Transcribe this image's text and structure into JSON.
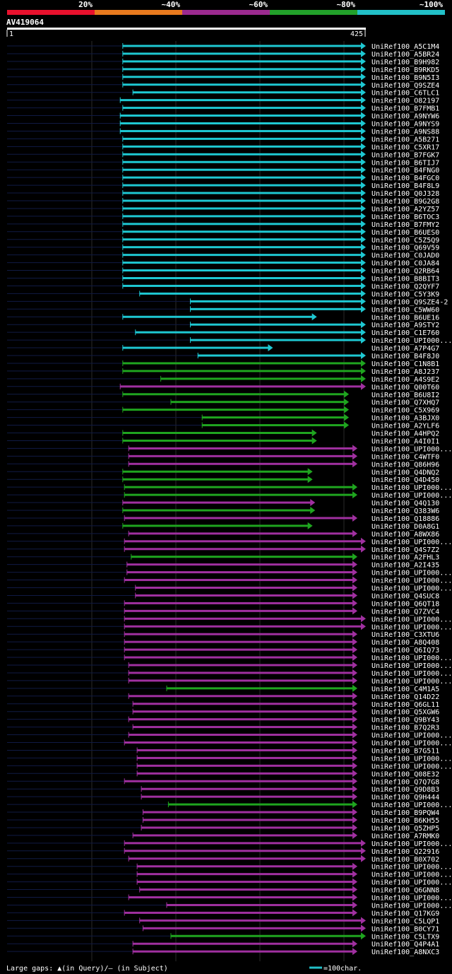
{
  "header": {
    "scale_labels": [
      "20%",
      "~40%",
      "~60%",
      "~80%",
      "~100%"
    ],
    "scale_colors": [
      "#e8112d",
      "#e87a1e",
      "#9b2a8f",
      "#22a02a",
      "#22c0c8"
    ],
    "query_id": "AV419064",
    "query_start": "1",
    "query_end": "425"
  },
  "footer": {
    "gaps_text": "Large gaps: ▲(in Query)/– (in Subject)",
    "scale_text": "=100char."
  },
  "chart_data": {
    "type": "alignment",
    "title": "AV419064",
    "x_range": [
      1,
      425
    ],
    "color_by_identity": {
      "cyan": "~100%",
      "green": "~80%",
      "purple": "~60%"
    },
    "hits": [
      {
        "id": "UniRef100_A5C1M4",
        "color": "cyan",
        "start": 138,
        "end": 425
      },
      {
        "id": "UniRef100_A5BR24",
        "color": "cyan",
        "start": 138,
        "end": 425
      },
      {
        "id": "UniRef100_B9H982",
        "color": "cyan",
        "start": 138,
        "end": 425
      },
      {
        "id": "UniRef100_B9RKD5",
        "color": "cyan",
        "start": 138,
        "end": 425
      },
      {
        "id": "UniRef100_B9N5I3",
        "color": "cyan",
        "start": 138,
        "end": 425
      },
      {
        "id": "UniRef100_Q9SZE4",
        "color": "cyan",
        "start": 138,
        "end": 425
      },
      {
        "id": "UniRef100_C6TLC1",
        "color": "cyan",
        "start": 150,
        "end": 425
      },
      {
        "id": "UniRef100_O82197",
        "color": "cyan",
        "start": 135,
        "end": 425
      },
      {
        "id": "UniRef100_B7FMB1",
        "color": "cyan",
        "start": 138,
        "end": 425
      },
      {
        "id": "UniRef100_A9NYW6",
        "color": "cyan",
        "start": 135,
        "end": 425
      },
      {
        "id": "UniRef100_A9NYS9",
        "color": "cyan",
        "start": 135,
        "end": 425
      },
      {
        "id": "UniRef100_A9NS88",
        "color": "cyan",
        "start": 135,
        "end": 425
      },
      {
        "id": "UniRef100_A5B271",
        "color": "cyan",
        "start": 138,
        "end": 425
      },
      {
        "id": "UniRef100_C5XR17",
        "color": "cyan",
        "start": 138,
        "end": 425
      },
      {
        "id": "UniRef100_B7FGK7",
        "color": "cyan",
        "start": 138,
        "end": 425
      },
      {
        "id": "UniRef100_B6TIJ7",
        "color": "cyan",
        "start": 138,
        "end": 425
      },
      {
        "id": "UniRef100_B4FNG0",
        "color": "cyan",
        "start": 138,
        "end": 425
      },
      {
        "id": "UniRef100_B4FGC0",
        "color": "cyan",
        "start": 138,
        "end": 425
      },
      {
        "id": "UniRef100_B4F8L9",
        "color": "cyan",
        "start": 138,
        "end": 425
      },
      {
        "id": "UniRef100_Q0J328",
        "color": "cyan",
        "start": 138,
        "end": 425
      },
      {
        "id": "UniRef100_B9G2G8",
        "color": "cyan",
        "start": 138,
        "end": 425
      },
      {
        "id": "UniRef100_A2YZ57",
        "color": "cyan",
        "start": 138,
        "end": 425
      },
      {
        "id": "UniRef100_B6TOC3",
        "color": "cyan",
        "start": 138,
        "end": 425
      },
      {
        "id": "UniRef100_B7FMY2",
        "color": "cyan",
        "start": 138,
        "end": 425
      },
      {
        "id": "UniRef100_B6UES0",
        "color": "cyan",
        "start": 138,
        "end": 425
      },
      {
        "id": "UniRef100_C5Z5Q9",
        "color": "cyan",
        "start": 138,
        "end": 425
      },
      {
        "id": "UniRef100_Q69V59",
        "color": "cyan",
        "start": 138,
        "end": 425
      },
      {
        "id": "UniRef100_C0JAD0",
        "color": "cyan",
        "start": 138,
        "end": 425
      },
      {
        "id": "UniRef100_C0JA84",
        "color": "cyan",
        "start": 138,
        "end": 425
      },
      {
        "id": "UniRef100_Q2RB64",
        "color": "cyan",
        "start": 138,
        "end": 425
      },
      {
        "id": "UniRef100_B8BIT3",
        "color": "cyan",
        "start": 138,
        "end": 425
      },
      {
        "id": "UniRef100_Q2QYF7",
        "color": "cyan",
        "start": 138,
        "end": 425
      },
      {
        "id": "UniRef100_C5Y3K9",
        "color": "cyan",
        "start": 158,
        "end": 425
      },
      {
        "id": "UniRef100_Q9SZE4-2",
        "color": "cyan",
        "start": 218,
        "end": 425
      },
      {
        "id": "UniRef100_C5WW60",
        "color": "cyan",
        "start": 218,
        "end": 425
      },
      {
        "id": "UniRef100_B6UE16",
        "color": "cyan",
        "start": 138,
        "end": 367
      },
      {
        "id": "UniRef100_A9STY2",
        "color": "cyan",
        "start": 218,
        "end": 425
      },
      {
        "id": "UniRef100_C1E760",
        "color": "cyan",
        "start": 153,
        "end": 425
      },
      {
        "id": "UniRef100_UPI000...",
        "color": "cyan",
        "start": 218,
        "end": 425
      },
      {
        "id": "UniRef100_A7P4G7",
        "color": "cyan",
        "start": 138,
        "end": 315
      },
      {
        "id": "UniRef100_B4F8J0",
        "color": "cyan",
        "start": 227,
        "end": 425
      },
      {
        "id": "UniRef100_C1N8B1",
        "color": "green",
        "start": 138,
        "end": 425
      },
      {
        "id": "UniRef100_A8J237",
        "color": "green",
        "start": 138,
        "end": 425
      },
      {
        "id": "UniRef100_A4S9E2",
        "color": "green",
        "start": 183,
        "end": 425
      },
      {
        "id": "UniRef100_Q00T60",
        "color": "purple",
        "start": 135,
        "end": 425
      },
      {
        "id": "UniRef100_B6U8I2",
        "color": "green",
        "start": 138,
        "end": 405
      },
      {
        "id": "UniRef100_Q7XHQ7",
        "color": "green",
        "start": 195,
        "end": 405
      },
      {
        "id": "UniRef100_C5X969",
        "color": "green",
        "start": 138,
        "end": 405
      },
      {
        "id": "UniRef100_A3BJX0",
        "color": "green",
        "start": 232,
        "end": 405
      },
      {
        "id": "UniRef100_A2YLF6",
        "color": "green",
        "start": 232,
        "end": 405
      },
      {
        "id": "UniRef100_A4HPQ2",
        "color": "green",
        "start": 138,
        "end": 367
      },
      {
        "id": "UniRef100_A4I0I1",
        "color": "green",
        "start": 138,
        "end": 367
      },
      {
        "id": "UniRef100_UPI000...",
        "color": "purple",
        "start": 145,
        "end": 415
      },
      {
        "id": "UniRef100_C4WTF0",
        "color": "purple",
        "start": 145,
        "end": 415
      },
      {
        "id": "UniRef100_Q86H96",
        "color": "purple",
        "start": 145,
        "end": 415
      },
      {
        "id": "UniRef100_Q4DNQ2",
        "color": "green",
        "start": 138,
        "end": 362
      },
      {
        "id": "UniRef100_Q4D450",
        "color": "green",
        "start": 138,
        "end": 362
      },
      {
        "id": "UniRef100_UPI000...",
        "color": "green",
        "start": 140,
        "end": 415
      },
      {
        "id": "UniRef100_UPI000...",
        "color": "green",
        "start": 140,
        "end": 415
      },
      {
        "id": "UniRef100_Q4Q130",
        "color": "purple",
        "start": 138,
        "end": 365
      },
      {
        "id": "UniRef100_Q383W6",
        "color": "green",
        "start": 138,
        "end": 365
      },
      {
        "id": "UniRef100_Q18886",
        "color": "purple",
        "start": 140,
        "end": 415
      },
      {
        "id": "UniRef100_D0A8G1",
        "color": "green",
        "start": 138,
        "end": 362
      },
      {
        "id": "UniRef100_A8WX86",
        "color": "purple",
        "start": 145,
        "end": 415
      },
      {
        "id": "UniRef100_UPI000...",
        "color": "purple",
        "start": 140,
        "end": 425
      },
      {
        "id": "UniRef100_Q4S7Z2",
        "color": "purple",
        "start": 140,
        "end": 425
      },
      {
        "id": "UniRef100_A2FHL3",
        "color": "green",
        "start": 148,
        "end": 415
      },
      {
        "id": "UniRef100_A2I435",
        "color": "purple",
        "start": 143,
        "end": 415
      },
      {
        "id": "UniRef100_UPI000...",
        "color": "purple",
        "start": 143,
        "end": 415
      },
      {
        "id": "UniRef100_UPI000...",
        "color": "purple",
        "start": 140,
        "end": 415
      },
      {
        "id": "UniRef100_UPI000...",
        "color": "purple",
        "start": 153,
        "end": 415
      },
      {
        "id": "UniRef100_Q4SUC8",
        "color": "purple",
        "start": 153,
        "end": 415
      },
      {
        "id": "UniRef100_Q6QT18",
        "color": "purple",
        "start": 140,
        "end": 415
      },
      {
        "id": "UniRef100_Q7ZVC4",
        "color": "purple",
        "start": 140,
        "end": 415
      },
      {
        "id": "UniRef100_UPI000...",
        "color": "purple",
        "start": 140,
        "end": 425
      },
      {
        "id": "UniRef100_UPI000...",
        "color": "purple",
        "start": 140,
        "end": 425
      },
      {
        "id": "UniRef100_C3XTU6",
        "color": "purple",
        "start": 140,
        "end": 415
      },
      {
        "id": "UniRef100_A8Q408",
        "color": "purple",
        "start": 140,
        "end": 415
      },
      {
        "id": "UniRef100_Q6IQ73",
        "color": "purple",
        "start": 140,
        "end": 415
      },
      {
        "id": "UniRef100_UPI000...",
        "color": "purple",
        "start": 140,
        "end": 415
      },
      {
        "id": "UniRef100_UPI000...",
        "color": "purple",
        "start": 145,
        "end": 415
      },
      {
        "id": "UniRef100_UPI000...",
        "color": "purple",
        "start": 145,
        "end": 415
      },
      {
        "id": "UniRef100_UPI000...",
        "color": "purple",
        "start": 145,
        "end": 415
      },
      {
        "id": "UniRef100_C4M1A5",
        "color": "green",
        "start": 190,
        "end": 415
      },
      {
        "id": "UniRef100_Q14D22",
        "color": "purple",
        "start": 145,
        "end": 415
      },
      {
        "id": "UniRef100_Q6GL11",
        "color": "purple",
        "start": 150,
        "end": 415
      },
      {
        "id": "UniRef100_Q5XGW6",
        "color": "purple",
        "start": 150,
        "end": 415
      },
      {
        "id": "UniRef100_Q9BY43",
        "color": "purple",
        "start": 145,
        "end": 415
      },
      {
        "id": "UniRef100_B7Q2R3",
        "color": "purple",
        "start": 150,
        "end": 415
      },
      {
        "id": "UniRef100_UPI000...",
        "color": "purple",
        "start": 145,
        "end": 415
      },
      {
        "id": "UniRef100_UPI000...",
        "color": "purple",
        "start": 140,
        "end": 415
      },
      {
        "id": "UniRef100_B7G511",
        "color": "purple",
        "start": 155,
        "end": 415
      },
      {
        "id": "UniRef100_UPI000...",
        "color": "purple",
        "start": 155,
        "end": 415
      },
      {
        "id": "UniRef100_UPI000...",
        "color": "purple",
        "start": 155,
        "end": 415
      },
      {
        "id": "UniRef100_Q08E32",
        "color": "purple",
        "start": 155,
        "end": 415
      },
      {
        "id": "UniRef100_Q7Q7G8",
        "color": "purple",
        "start": 140,
        "end": 415
      },
      {
        "id": "UniRef100_Q9D8B3",
        "color": "purple",
        "start": 160,
        "end": 415
      },
      {
        "id": "UniRef100_Q9H444",
        "color": "purple",
        "start": 160,
        "end": 415
      },
      {
        "id": "UniRef100_UPI000...",
        "color": "green",
        "start": 192,
        "end": 415
      },
      {
        "id": "UniRef100_B9PQW4",
        "color": "purple",
        "start": 162,
        "end": 415
      },
      {
        "id": "UniRef100_B6KH55",
        "color": "purple",
        "start": 162,
        "end": 415
      },
      {
        "id": "UniRef100_Q5ZHP5",
        "color": "purple",
        "start": 160,
        "end": 415
      },
      {
        "id": "UniRef100_A7RMK0",
        "color": "purple",
        "start": 150,
        "end": 415
      },
      {
        "id": "UniRef100_UPI000...",
        "color": "purple",
        "start": 140,
        "end": 425
      },
      {
        "id": "UniRef100_Q22916",
        "color": "purple",
        "start": 140,
        "end": 425
      },
      {
        "id": "UniRef100_B0X702",
        "color": "purple",
        "start": 145,
        "end": 425
      },
      {
        "id": "UniRef100_UPI000...",
        "color": "purple",
        "start": 155,
        "end": 415
      },
      {
        "id": "UniRef100_UPI000...",
        "color": "purple",
        "start": 155,
        "end": 415
      },
      {
        "id": "UniRef100_UPI000...",
        "color": "purple",
        "start": 155,
        "end": 415
      },
      {
        "id": "UniRef100_Q6GNN8",
        "color": "purple",
        "start": 158,
        "end": 415
      },
      {
        "id": "UniRef100_UPI000...",
        "color": "purple",
        "start": 145,
        "end": 415
      },
      {
        "id": "UniRef100_UPI000...",
        "color": "purple",
        "start": 190,
        "end": 415
      },
      {
        "id": "UniRef100_Q17KG9",
        "color": "purple",
        "start": 140,
        "end": 415
      },
      {
        "id": "UniRef100_C5LQP1",
        "color": "purple",
        "start": 158,
        "end": 425
      },
      {
        "id": "UniRef100_B0CY71",
        "color": "purple",
        "start": 162,
        "end": 425
      },
      {
        "id": "UniRef100_C5LTX9",
        "color": "green",
        "start": 195,
        "end": 425
      },
      {
        "id": "UniRef100_Q4P4A1",
        "color": "purple",
        "start": 150,
        "end": 415
      },
      {
        "id": "UniRef100_A8NXC3",
        "color": "purple",
        "start": 150,
        "end": 415
      }
    ]
  }
}
